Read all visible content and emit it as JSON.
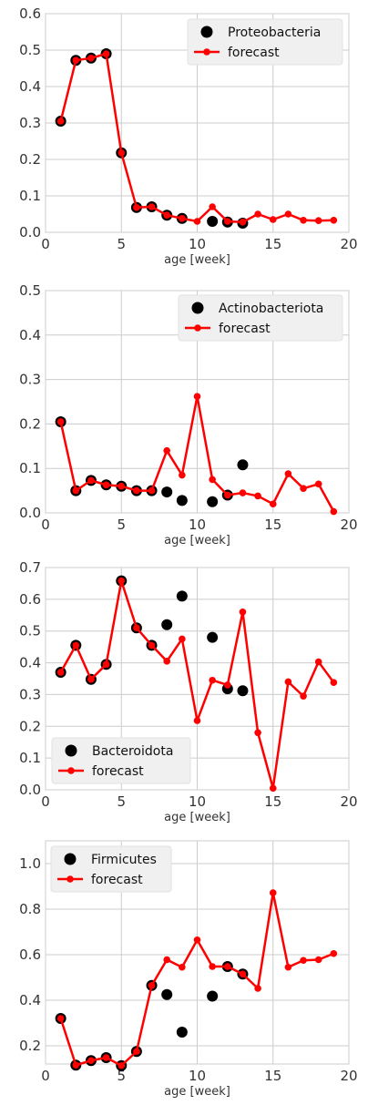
{
  "colors": {
    "observed": "#000000",
    "forecast": "#ff0000",
    "grid": "#cccccc",
    "legend_bg": "#f0f0f0"
  },
  "chart_data": [
    {
      "type": "line",
      "xlabel": "age [week]",
      "xlim": [
        0,
        20
      ],
      "ylim": [
        0,
        0.6
      ],
      "xticks": [
        0,
        5,
        10,
        15,
        20
      ],
      "yticks": [
        0.0,
        0.1,
        0.2,
        0.3,
        0.4,
        0.5,
        0.6
      ],
      "ytick_labels": [
        "0.0",
        "0.1",
        "0.2",
        "0.3",
        "0.4",
        "0.5",
        "0.6"
      ],
      "legend_placement": "top-right",
      "series": [
        {
          "name": "Proteobacteria",
          "kind": "scatter",
          "x": [
            1,
            2,
            3,
            4,
            5,
            6,
            7,
            8,
            9,
            11,
            12,
            13
          ],
          "y": [
            0.305,
            0.472,
            0.478,
            0.49,
            0.218,
            0.068,
            0.07,
            0.047,
            0.038,
            0.03,
            0.028,
            0.025
          ]
        },
        {
          "name": "forecast",
          "kind": "line",
          "x": [
            1,
            2,
            3,
            4,
            5,
            6,
            7,
            8,
            9,
            10,
            11,
            12,
            13,
            14,
            15,
            16,
            17,
            18,
            19
          ],
          "y": [
            0.305,
            0.472,
            0.478,
            0.49,
            0.218,
            0.068,
            0.07,
            0.047,
            0.038,
            0.03,
            0.07,
            0.03,
            0.028,
            0.05,
            0.035,
            0.05,
            0.033,
            0.032,
            0.033
          ]
        }
      ]
    },
    {
      "type": "line",
      "xlabel": "age [week]",
      "xlim": [
        0,
        20
      ],
      "ylim": [
        0,
        0.5
      ],
      "xticks": [
        0,
        5,
        10,
        15,
        20
      ],
      "yticks": [
        0.0,
        0.1,
        0.2,
        0.3,
        0.4,
        0.5
      ],
      "ytick_labels": [
        "0.0",
        "0.1",
        "0.2",
        "0.3",
        "0.4",
        "0.5"
      ],
      "legend_placement": "top-right",
      "series": [
        {
          "name": "Actinobacteriota",
          "kind": "scatter",
          "x": [
            1,
            2,
            3,
            4,
            5,
            6,
            7,
            8,
            9,
            11,
            12,
            13
          ],
          "y": [
            0.205,
            0.05,
            0.073,
            0.063,
            0.06,
            0.05,
            0.05,
            0.047,
            0.028,
            0.025,
            0.04,
            0.108
          ]
        },
        {
          "name": "forecast",
          "kind": "line",
          "x": [
            1,
            2,
            3,
            4,
            5,
            6,
            7,
            8,
            9,
            10,
            11,
            12,
            13,
            14,
            15,
            16,
            17,
            18,
            19
          ],
          "y": [
            0.205,
            0.05,
            0.073,
            0.063,
            0.06,
            0.05,
            0.05,
            0.14,
            0.085,
            0.262,
            0.075,
            0.04,
            0.045,
            0.038,
            0.02,
            0.088,
            0.055,
            0.065,
            0.003
          ]
        }
      ]
    },
    {
      "type": "line",
      "xlabel": "age [week]",
      "xlim": [
        0,
        20
      ],
      "ylim": [
        0,
        0.7
      ],
      "xticks": [
        0,
        5,
        10,
        15,
        20
      ],
      "yticks": [
        0.0,
        0.1,
        0.2,
        0.3,
        0.4,
        0.5,
        0.6,
        0.7
      ],
      "ytick_labels": [
        "0.0",
        "0.1",
        "0.2",
        "0.3",
        "0.4",
        "0.5",
        "0.6",
        "0.7"
      ],
      "legend_placement": "bottom-left",
      "series": [
        {
          "name": "Bacteroidota",
          "kind": "scatter",
          "x": [
            1,
            2,
            3,
            4,
            5,
            6,
            7,
            8,
            9,
            11,
            12,
            13
          ],
          "y": [
            0.37,
            0.455,
            0.348,
            0.395,
            0.658,
            0.51,
            0.455,
            0.52,
            0.61,
            0.48,
            0.318,
            0.312
          ]
        },
        {
          "name": "forecast",
          "kind": "line",
          "x": [
            1,
            2,
            3,
            4,
            5,
            6,
            7,
            8,
            9,
            10,
            11,
            12,
            13,
            14,
            15,
            16,
            17,
            18,
            19
          ],
          "y": [
            0.37,
            0.455,
            0.348,
            0.395,
            0.658,
            0.51,
            0.455,
            0.405,
            0.475,
            0.218,
            0.345,
            0.33,
            0.56,
            0.18,
            0.005,
            0.34,
            0.295,
            0.403,
            0.338
          ]
        }
      ]
    },
    {
      "type": "line",
      "xlabel": "age [week]",
      "xlim": [
        0,
        20
      ],
      "ylim": [
        0.12,
        1.1
      ],
      "xticks": [
        0,
        5,
        10,
        15,
        20
      ],
      "yticks": [
        0.2,
        0.4,
        0.6,
        0.8,
        1.0
      ],
      "ytick_labels": [
        "0.2",
        "0.4",
        "0.6",
        "0.8",
        "1.0"
      ],
      "legend_placement": "top-left",
      "series": [
        {
          "name": "Firmicutes",
          "kind": "scatter",
          "x": [
            1,
            2,
            3,
            4,
            5,
            6,
            7,
            8,
            9,
            11,
            12,
            13
          ],
          "y": [
            0.32,
            0.115,
            0.135,
            0.148,
            0.113,
            0.175,
            0.465,
            0.425,
            0.26,
            0.418,
            0.548,
            0.515
          ]
        },
        {
          "name": "forecast",
          "kind": "line",
          "x": [
            1,
            2,
            3,
            4,
            5,
            6,
            7,
            8,
            9,
            10,
            11,
            12,
            13,
            14,
            15,
            16,
            17,
            18,
            19
          ],
          "y": [
            0.32,
            0.115,
            0.135,
            0.148,
            0.113,
            0.175,
            0.465,
            0.578,
            0.545,
            0.665,
            0.548,
            0.548,
            0.515,
            0.452,
            0.872,
            0.545,
            0.575,
            0.578,
            0.605
          ]
        }
      ]
    }
  ]
}
